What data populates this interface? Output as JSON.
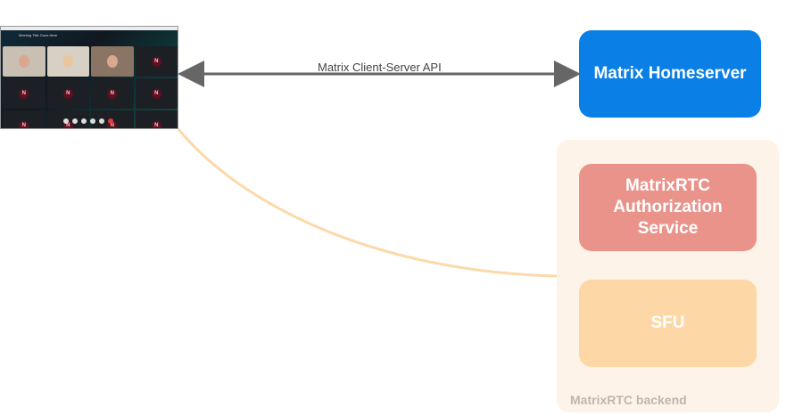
{
  "client": {
    "window_title": "Meeting Title Goes Here",
    "avatar_initial": "N"
  },
  "api_label": "Matrix Client-Server API",
  "homeserver": {
    "label": "Matrix Homeserver",
    "color": "#0a7fe6"
  },
  "backend": {
    "label": "MatrixRTC backend",
    "color": "#fef3e8",
    "auth_service": {
      "label": "MatrixRTC Authorization Service",
      "color": "#e9938b"
    },
    "sfu": {
      "label": "SFU",
      "color": "#fdd8a6"
    }
  },
  "connection_color": "#fcd9a8",
  "arrow_color": "#666666"
}
